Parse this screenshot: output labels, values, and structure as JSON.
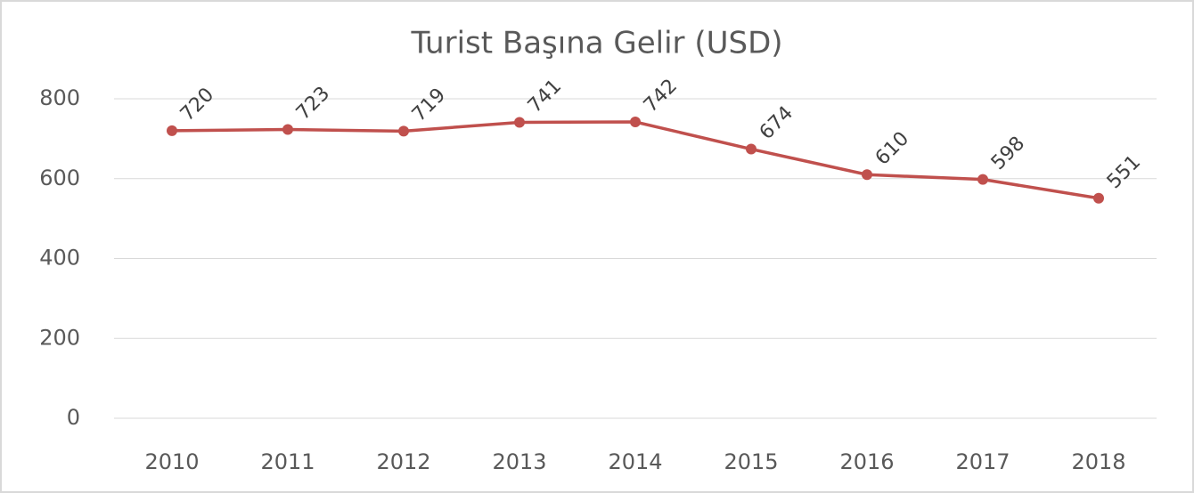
{
  "chart_data": {
    "type": "line",
    "title": "Turist Başına Gelir (USD)",
    "categories": [
      "2010",
      "2011",
      "2012",
      "2013",
      "2014",
      "2015",
      "2016",
      "2017",
      "2018"
    ],
    "series": [
      {
        "name": "Turist Başına Gelir (USD)",
        "color": "#c0504d",
        "values": [
          720,
          723,
          719,
          741,
          742,
          674,
          610,
          598,
          551
        ]
      }
    ],
    "ylim": [
      0,
      800
    ],
    "yticks": [
      0,
      200,
      400,
      600,
      800
    ],
    "grid": true
  }
}
